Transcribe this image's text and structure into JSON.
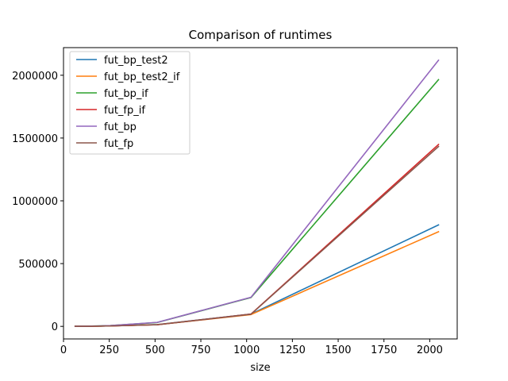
{
  "chart_data": {
    "type": "line",
    "title": "Comparison of runtimes",
    "xlabel": "size",
    "ylabel": "",
    "xlim": [
      0,
      2150
    ],
    "ylim": [
      -100000,
      2220000
    ],
    "xticks": [
      0,
      250,
      500,
      750,
      1000,
      1250,
      1500,
      1750,
      2000
    ],
    "yticks": [
      0,
      500000,
      1000000,
      1500000,
      2000000
    ],
    "xtick_labels": [
      "0",
      "250",
      "500",
      "750",
      "1000",
      "1250",
      "1500",
      "1750",
      "2000"
    ],
    "ytick_labels": [
      "0",
      "500000",
      "1000000",
      "1500000",
      "2000000"
    ],
    "grid": false,
    "legend_position": "top-left",
    "x": [
      64,
      128,
      256,
      512,
      1024,
      2048
    ],
    "series": [
      {
        "name": "fut_bp_test2",
        "color": "#1f77b4",
        "values": [
          500,
          1000,
          3500,
          14000,
          98000,
          808000
        ]
      },
      {
        "name": "fut_bp_test2_if",
        "color": "#ff7f0e",
        "values": [
          500,
          1000,
          3500,
          13500,
          94000,
          754000
        ]
      },
      {
        "name": "fut_bp_if",
        "color": "#2ca02c",
        "values": [
          700,
          1500,
          6000,
          31000,
          230000,
          1965000
        ]
      },
      {
        "name": "fut_fp_if",
        "color": "#d62728",
        "values": [
          500,
          1000,
          3500,
          13000,
          98000,
          1449000
        ]
      },
      {
        "name": "fut_bp",
        "color": "#9467bd",
        "values": [
          700,
          1500,
          6000,
          32000,
          232000,
          2120000
        ]
      },
      {
        "name": "fut_fp",
        "color": "#8c564b",
        "values": [
          500,
          1000,
          3500,
          13000,
          97000,
          1433000
        ]
      }
    ]
  }
}
